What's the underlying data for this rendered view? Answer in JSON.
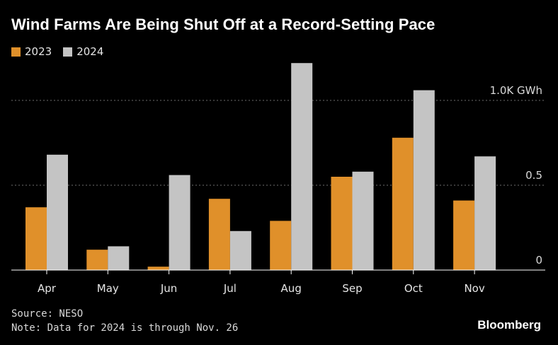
{
  "title": "Wind Farms Are Being Shut Off at a Record-Setting Pace",
  "source": "Source: NESO",
  "note": "Note: Data for 2024 is through Nov. 26",
  "brand": "Bloomberg",
  "colors": {
    "2023": "#e0902a",
    "2024": "#c4c4c4",
    "background": "#000000"
  },
  "chart_data": {
    "type": "bar",
    "categories": [
      "Apr",
      "May",
      "Jun",
      "Jul",
      "Aug",
      "Sep",
      "Oct",
      "Nov"
    ],
    "series": [
      {
        "name": "2023",
        "values": [
          0.37,
          0.12,
          0.02,
          0.42,
          0.29,
          0.55,
          0.78,
          0.41
        ]
      },
      {
        "name": "2024",
        "values": [
          0.68,
          0.14,
          0.56,
          0.23,
          1.22,
          0.58,
          1.06,
          0.67
        ]
      }
    ],
    "ylabel": "",
    "ylim": [
      0,
      1.25
    ],
    "yticks": [
      {
        "value": 0,
        "label": "0"
      },
      {
        "value": 0.5,
        "label": "0.5"
      },
      {
        "value": 1.0,
        "label": "1.0K GWh"
      }
    ],
    "grid": true,
    "legend_position": "top-left"
  }
}
